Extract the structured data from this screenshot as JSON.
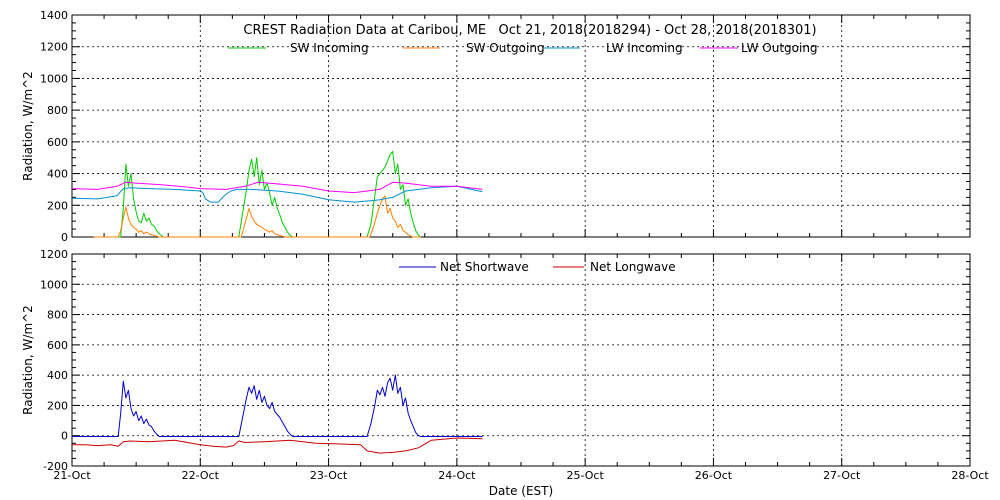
{
  "chart_data": [
    {
      "type": "line",
      "title": "CREST Radiation Data at Caribou, ME   Oct 21, 2018(2018294) - Oct 28, 2018(2018301)",
      "ylabel": "Radiation, W/m^2",
      "xlabel": "",
      "xlim": [
        0,
        7
      ],
      "ylim": [
        0,
        1400
      ],
      "yticks": [
        0,
        200,
        400,
        600,
        800,
        1000,
        1200,
        1400
      ],
      "x_ticks": [
        0,
        1,
        2,
        3,
        4,
        5,
        6,
        7
      ],
      "x_tick_labels": [
        "",
        "",
        "",
        "",
        "",
        "",
        "",
        ""
      ],
      "grid": true,
      "legend_position": "top",
      "series": [
        {
          "name": "SW Incoming",
          "color": "#00cc00",
          "x": [
            0.17,
            0.38,
            0.4,
            0.42,
            0.44,
            0.46,
            0.48,
            0.5,
            0.52,
            0.54,
            0.56,
            0.58,
            0.6,
            0.62,
            0.64,
            0.66,
            0.68,
            0.71,
            0.72,
            1.17,
            1.3,
            1.33,
            1.36,
            1.38,
            1.4,
            1.42,
            1.44,
            1.46,
            1.48,
            1.5,
            1.52,
            1.54,
            1.56,
            1.58,
            1.6,
            1.62,
            1.64,
            1.66,
            1.68,
            1.7,
            1.72,
            2.17,
            2.3,
            2.33,
            2.36,
            2.38,
            2.4,
            2.42,
            2.44,
            2.46,
            2.48,
            2.5,
            2.52,
            2.54,
            2.56,
            2.58,
            2.6,
            2.62,
            2.64,
            2.66,
            2.68,
            2.7,
            2.72
          ],
          "values": [
            0,
            0,
            180,
            460,
            320,
            400,
            240,
            160,
            100,
            90,
            150,
            100,
            120,
            80,
            70,
            40,
            20,
            0,
            0,
            0,
            0,
            150,
            300,
            420,
            490,
            380,
            500,
            330,
            420,
            300,
            340,
            280,
            200,
            250,
            180,
            140,
            90,
            60,
            30,
            10,
            0,
            0,
            0,
            80,
            260,
            380,
            400,
            420,
            440,
            480,
            520,
            540,
            400,
            460,
            300,
            330,
            200,
            240,
            150,
            90,
            40,
            10,
            0
          ]
        },
        {
          "name": "SW Outgoing",
          "color": "#ff8000",
          "x": [
            0.17,
            0.36,
            0.38,
            0.4,
            0.42,
            0.44,
            0.46,
            0.48,
            0.5,
            0.52,
            0.54,
            0.56,
            0.58,
            0.6,
            0.62,
            0.64,
            0.66,
            0.68,
            0.71,
            0.72,
            1.17,
            1.32,
            1.34,
            1.36,
            1.38,
            1.4,
            1.42,
            1.44,
            1.46,
            1.48,
            1.5,
            1.52,
            1.54,
            1.56,
            1.58,
            1.6,
            1.62,
            1.64,
            1.66,
            1.68,
            1.7,
            1.72,
            2.17,
            2.32,
            2.34,
            2.36,
            2.38,
            2.4,
            2.42,
            2.44,
            2.46,
            2.48,
            2.5,
            2.52,
            2.54,
            2.56,
            2.58,
            2.6,
            2.62,
            2.64,
            2.66,
            2.68,
            2.7,
            2.72
          ],
          "values": [
            0,
            0,
            40,
            120,
            190,
            120,
            80,
            60,
            50,
            30,
            40,
            20,
            30,
            20,
            15,
            10,
            5,
            0,
            0,
            0,
            0,
            0,
            60,
            120,
            180,
            130,
            100,
            80,
            70,
            60,
            50,
            40,
            30,
            40,
            20,
            15,
            10,
            5,
            0,
            0,
            0,
            0,
            0,
            0,
            40,
            90,
            150,
            200,
            240,
            260,
            150,
            180,
            120,
            100,
            60,
            80,
            40,
            30,
            15,
            5,
            0,
            0,
            0,
            0
          ]
        },
        {
          "name": "LW Incoming",
          "color": "#0090d0",
          "x": [
            0,
            0.2,
            0.35,
            0.4,
            0.45,
            0.6,
            0.8,
            1.0,
            1.02,
            1.04,
            1.08,
            1.14,
            1.2,
            1.24,
            1.28,
            1.4,
            1.6,
            1.8,
            2.0,
            2.2,
            2.35,
            2.4,
            2.5,
            2.6,
            2.8,
            3.0,
            3.2
          ],
          "values": [
            245,
            240,
            260,
            305,
            310,
            305,
            300,
            290,
            280,
            240,
            220,
            220,
            270,
            290,
            300,
            300,
            290,
            270,
            235,
            220,
            230,
            235,
            250,
            290,
            310,
            320,
            285
          ]
        },
        {
          "name": "LW Outgoing",
          "color": "#ff00ff",
          "x": [
            0,
            0.2,
            0.35,
            0.42,
            0.5,
            0.7,
            0.9,
            1.0,
            1.2,
            1.35,
            1.45,
            1.6,
            1.8,
            2.0,
            2.2,
            2.4,
            2.5,
            2.6,
            2.8,
            3.0,
            3.2
          ],
          "values": [
            305,
            300,
            320,
            345,
            340,
            330,
            315,
            305,
            300,
            320,
            345,
            335,
            320,
            290,
            280,
            300,
            345,
            340,
            320,
            320,
            300
          ]
        }
      ]
    },
    {
      "type": "line",
      "title": "",
      "ylabel": "Radiation, W/m^2",
      "xlabel": "Date (EST)",
      "xlim": [
        0,
        7
      ],
      "ylim": [
        -200,
        1200
      ],
      "yticks": [
        -200,
        0,
        200,
        400,
        600,
        800,
        1000,
        1200
      ],
      "x_ticks": [
        0,
        1,
        2,
        3,
        4,
        5,
        6,
        7
      ],
      "x_tick_labels": [
        "21-Oct",
        "22-Oct",
        "23-Oct",
        "24-Oct",
        "25-Oct",
        "26-Oct",
        "27-Oct",
        "28-Oct"
      ],
      "grid": true,
      "legend_position": "top",
      "series": [
        {
          "name": "Net Shortwave",
          "color": "#0000cc",
          "x": [
            0,
            0.36,
            0.38,
            0.4,
            0.42,
            0.44,
            0.46,
            0.48,
            0.5,
            0.52,
            0.54,
            0.56,
            0.58,
            0.6,
            0.62,
            0.64,
            0.66,
            0.68,
            0.72,
            1.0,
            1.3,
            1.33,
            1.36,
            1.38,
            1.4,
            1.42,
            1.44,
            1.46,
            1.48,
            1.5,
            1.52,
            1.54,
            1.56,
            1.58,
            1.6,
            1.62,
            1.64,
            1.66,
            1.68,
            1.7,
            1.72,
            2.0,
            2.3,
            2.33,
            2.36,
            2.38,
            2.4,
            2.42,
            2.44,
            2.46,
            2.48,
            2.5,
            2.52,
            2.54,
            2.56,
            2.58,
            2.6,
            2.62,
            2.64,
            2.66,
            2.68,
            2.7,
            2.72,
            3.0,
            3.2
          ],
          "values": [
            -5,
            -5,
            150,
            360,
            250,
            300,
            180,
            130,
            160,
            100,
            130,
            80,
            110,
            70,
            60,
            30,
            10,
            -5,
            -5,
            -5,
            -5,
            120,
            250,
            320,
            280,
            330,
            240,
            300,
            220,
            260,
            200,
            180,
            220,
            160,
            140,
            120,
            90,
            60,
            30,
            10,
            -5,
            -5,
            -5,
            80,
            200,
            300,
            270,
            320,
            260,
            350,
            380,
            300,
            400,
            280,
            320,
            200,
            250,
            150,
            100,
            60,
            20,
            0,
            -5,
            -5,
            -5
          ]
        },
        {
          "name": "Net Longwave",
          "color": "#cc0000",
          "x": [
            0,
            0.1,
            0.2,
            0.3,
            0.36,
            0.4,
            0.45,
            0.6,
            0.8,
            1.0,
            1.1,
            1.2,
            1.26,
            1.3,
            1.35,
            1.5,
            1.7,
            1.9,
            2.1,
            2.25,
            2.3,
            2.4,
            2.5,
            2.6,
            2.7,
            2.8,
            3.0,
            3.2
          ],
          "values": [
            -60,
            -60,
            -65,
            -60,
            -70,
            -40,
            -35,
            -40,
            -30,
            -60,
            -70,
            -75,
            -65,
            -35,
            -45,
            -40,
            -30,
            -50,
            -55,
            -60,
            -100,
            -115,
            -110,
            -100,
            -80,
            -30,
            -15,
            -20
          ]
        }
      ]
    }
  ]
}
